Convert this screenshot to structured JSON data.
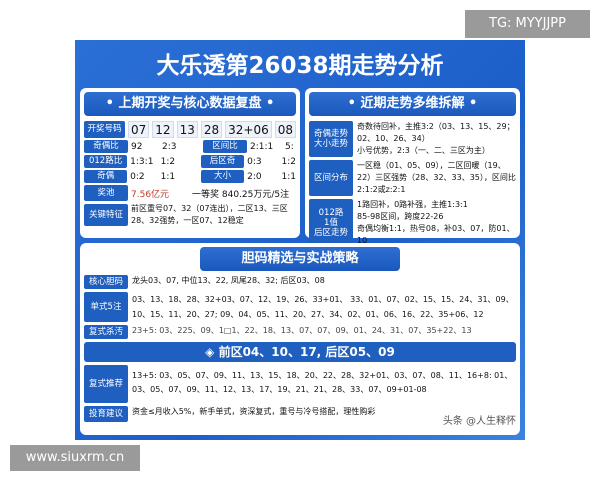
{
  "watermark_top": "TG: MYYJJPP",
  "watermark_bottom": "www.siuxrm.cn",
  "title": "大乐透第26038期走势分析",
  "left": {
    "header": "• 上期开奖与核心数据复盘 •",
    "draw_label": "开奖号码",
    "draw": [
      "07",
      "12",
      "13",
      "28",
      "32+06",
      "08"
    ],
    "rows": [
      {
        "l1": "奇偶比",
        "v1": "92",
        "v2": "2:3",
        "l2": "区间比",
        "v3": "2:1:1",
        "v4": "5:"
      },
      {
        "l1": "012路比",
        "v1": "1:3:1",
        "v2": "1:2",
        "l2": "后区奇",
        "v3": "0:3",
        "v4": "1:2"
      },
      {
        "l1": "奇偶",
        "v1": "0:2",
        "v2": "1:1",
        "l2": "大小",
        "v3": "2:0",
        "v4": "1:1"
      }
    ],
    "pool_label": "奖池",
    "pool": "7.56亿元",
    "first_prize": "一等奖 840.25万元/5注",
    "key_label": "关键特征",
    "key": "前区重号07、32（07连出），二区13、三区28、32强势，一区07、12稳定"
  },
  "right": {
    "header": "• 近期走势多维拆解 •",
    "groups": [
      {
        "labels": [
          "奇偶走势",
          "大小走势"
        ],
        "text": [
          "奇数待回补，主推3:2（03、13、15、29；02、10、26、34）",
          "小号优势，2:3（一、二、三区为主）"
        ]
      },
      {
        "labels": [
          "区间分布"
        ],
        "text": [
          "一区稳（01、05、09），二区回暖（19、22）三区强势（28、32、33、35），区间比2:1:2或z:2:1"
        ]
      },
      {
        "labels": [
          "012路",
          "1值",
          "后区走势"
        ],
        "text": [
          "1路回补，0路补强，主推1:3:1",
          "85-98区间，跨度22-26",
          "奇偶均衡1:1，热号08，补03、07，防01、10"
        ]
      }
    ]
  },
  "bottom": {
    "header": "胆码精选与实战策略",
    "core_label": "核心胆码",
    "core": "龙头03、07, 中位13、22, 凤尾28、32; 后区03、08",
    "single_label": "单式5注",
    "single": "03、13、18、28、32+03、07、12、19、26、33+01、 33、01、07、02、15、15、24、31、09、10、15、11、20、27; 09、04、05、11、20、27、34、02、01、06、16、22、35+06、12",
    "kill_label": "复式杀汚",
    "kill": "23+5: 03、225、09、1□1、22、18、13、07、07、09、01、24、31、07、35+22、13",
    "pick": "◈ 前区04、10、17, 后区05、09",
    "multi_label": "复式推荐",
    "multi": "13+5: 03、05、07、09、11、13、15、18、20、22、28、32+01、03、07、08、11、16+8: 01、03、05、07、09、11、12、13、17、19、21、21、28、33、07、09+01-08",
    "advice_label": "投育建议",
    "advice": "资金≤月收入5%，新手单式，资深复式，重号与冷号搭配，理性购彩",
    "signature": "头条 @人生释怀"
  }
}
